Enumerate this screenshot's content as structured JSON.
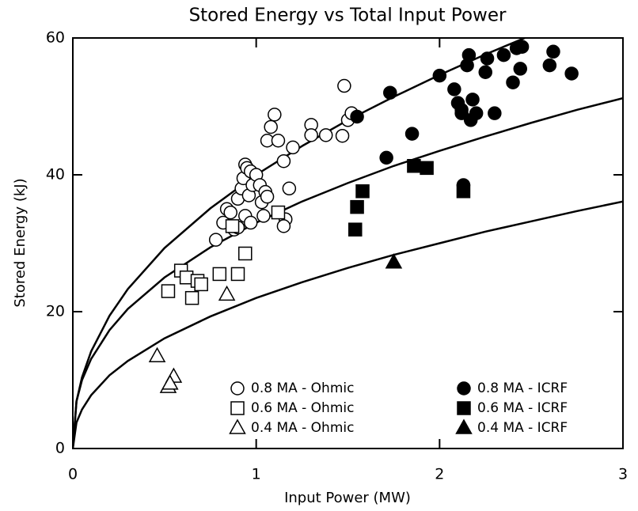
{
  "chart_data": {
    "type": "scatter",
    "title": "Stored Energy vs Total Input Power",
    "x_label": "Input Power (MW)",
    "y_label": "Stored Energy (kJ)",
    "xlim": [
      0,
      3
    ],
    "ylim": [
      0,
      60
    ],
    "xticks": [
      0,
      1,
      2,
      3
    ],
    "yticks": [
      0,
      20,
      40,
      60
    ],
    "legend": "lower right",
    "series": [
      {
        "name": "0.8 MA - Ohmic",
        "marker": "circle",
        "filled": false,
        "color": "#000000",
        "x": [
          0.78,
          0.82,
          0.84,
          0.86,
          0.88,
          0.9,
          0.92,
          0.93,
          0.94,
          0.95,
          0.96,
          0.97,
          0.98,
          1.0,
          1.02,
          1.03,
          1.04,
          1.05,
          1.06,
          1.08,
          1.1,
          1.12,
          1.15,
          1.16,
          1.18,
          1.2,
          1.3,
          1.3,
          1.38,
          1.47,
          1.48,
          1.5,
          1.52,
          0.94,
          0.97,
          0.9,
          1.06,
          1.15
        ],
        "values": [
          30.5,
          33,
          35,
          34.5,
          32,
          36.5,
          38,
          39.5,
          41.5,
          41,
          37,
          40.5,
          38.5,
          40,
          38.5,
          36,
          34,
          37.5,
          45,
          47,
          48.8,
          45,
          42,
          33.5,
          38,
          44,
          47.3,
          45.8,
          45.8,
          45.7,
          53,
          48,
          49,
          34,
          33,
          32.3,
          36.8,
          32.5
        ]
      },
      {
        "name": "0.6 MA - Ohmic",
        "marker": "square",
        "filled": false,
        "color": "#000000",
        "x": [
          0.52,
          0.59,
          0.62,
          0.65,
          0.68,
          0.7,
          0.8,
          0.9,
          0.94,
          0.87,
          1.12
        ],
        "values": [
          23,
          26,
          25,
          22,
          24.5,
          24,
          25.5,
          25.5,
          28.5,
          32.5,
          34.5
        ]
      },
      {
        "name": "0.4 MA - Ohmic",
        "marker": "triangle",
        "filled": false,
        "color": "#000000",
        "x": [
          0.46,
          0.52,
          0.55,
          0.84,
          0.53
        ],
        "values": [
          13.5,
          9,
          10.5,
          22.5,
          9.5
        ]
      },
      {
        "name": "0.8 MA - ICRF",
        "marker": "circle",
        "filled": true,
        "color": "#000000",
        "x": [
          1.55,
          1.73,
          1.71,
          1.85,
          2.0,
          2.08,
          2.1,
          2.12,
          2.13,
          2.15,
          2.16,
          2.17,
          2.18,
          2.2,
          2.25,
          2.26,
          2.3,
          2.35,
          2.4,
          2.42,
          2.44,
          2.45,
          2.6,
          2.62,
          2.72,
          2.12
        ],
        "values": [
          48.5,
          52,
          42.5,
          46,
          54.5,
          52.5,
          50.5,
          49,
          38.5,
          56,
          57.5,
          48,
          51,
          49,
          55,
          57,
          49,
          57.5,
          53.5,
          58.5,
          55.5,
          58.7,
          56,
          58,
          54.8,
          49.5
        ]
      },
      {
        "name": "0.6 MA - ICRF",
        "marker": "square",
        "filled": true,
        "color": "#000000",
        "x": [
          1.54,
          1.55,
          1.58,
          1.86,
          1.93,
          2.13
        ],
        "values": [
          32,
          35.3,
          37.6,
          41.3,
          41,
          37.6
        ]
      },
      {
        "name": "0.4 MA - ICRF",
        "marker": "triangle",
        "filled": true,
        "color": "#000000",
        "x": [
          1.75
        ],
        "values": [
          27.2
        ]
      }
    ],
    "fits": {
      "color": "#000000",
      "x": [
        0,
        0.02,
        0.05,
        0.1,
        0.2,
        0.3,
        0.5,
        0.75,
        1,
        1.25,
        1.5,
        1.75,
        2,
        2.25,
        2.5,
        2.75,
        3
      ],
      "series": [
        {
          "values": [
            0,
            6.9,
            10.4,
            14.2,
            19.4,
            23.3,
            29.3,
            35.1,
            40,
            44.2,
            48.0,
            51.4,
            54.6,
            57.6,
            60.4,
            null,
            null
          ]
        },
        {
          "values": [
            0,
            6.9,
            10.0,
            13.1,
            17.3,
            20.4,
            25.0,
            29.4,
            33,
            36.1,
            38.8,
            41.3,
            43.5,
            45.6,
            47.6,
            49.5,
            51.2
          ]
        },
        {
          "values": [
            0,
            3.8,
            5.7,
            7.8,
            10.7,
            12.8,
            16.1,
            19.3,
            22,
            24.3,
            26.4,
            28.3,
            30.0,
            31.7,
            33.2,
            34.7,
            36.1
          ]
        }
      ]
    }
  }
}
